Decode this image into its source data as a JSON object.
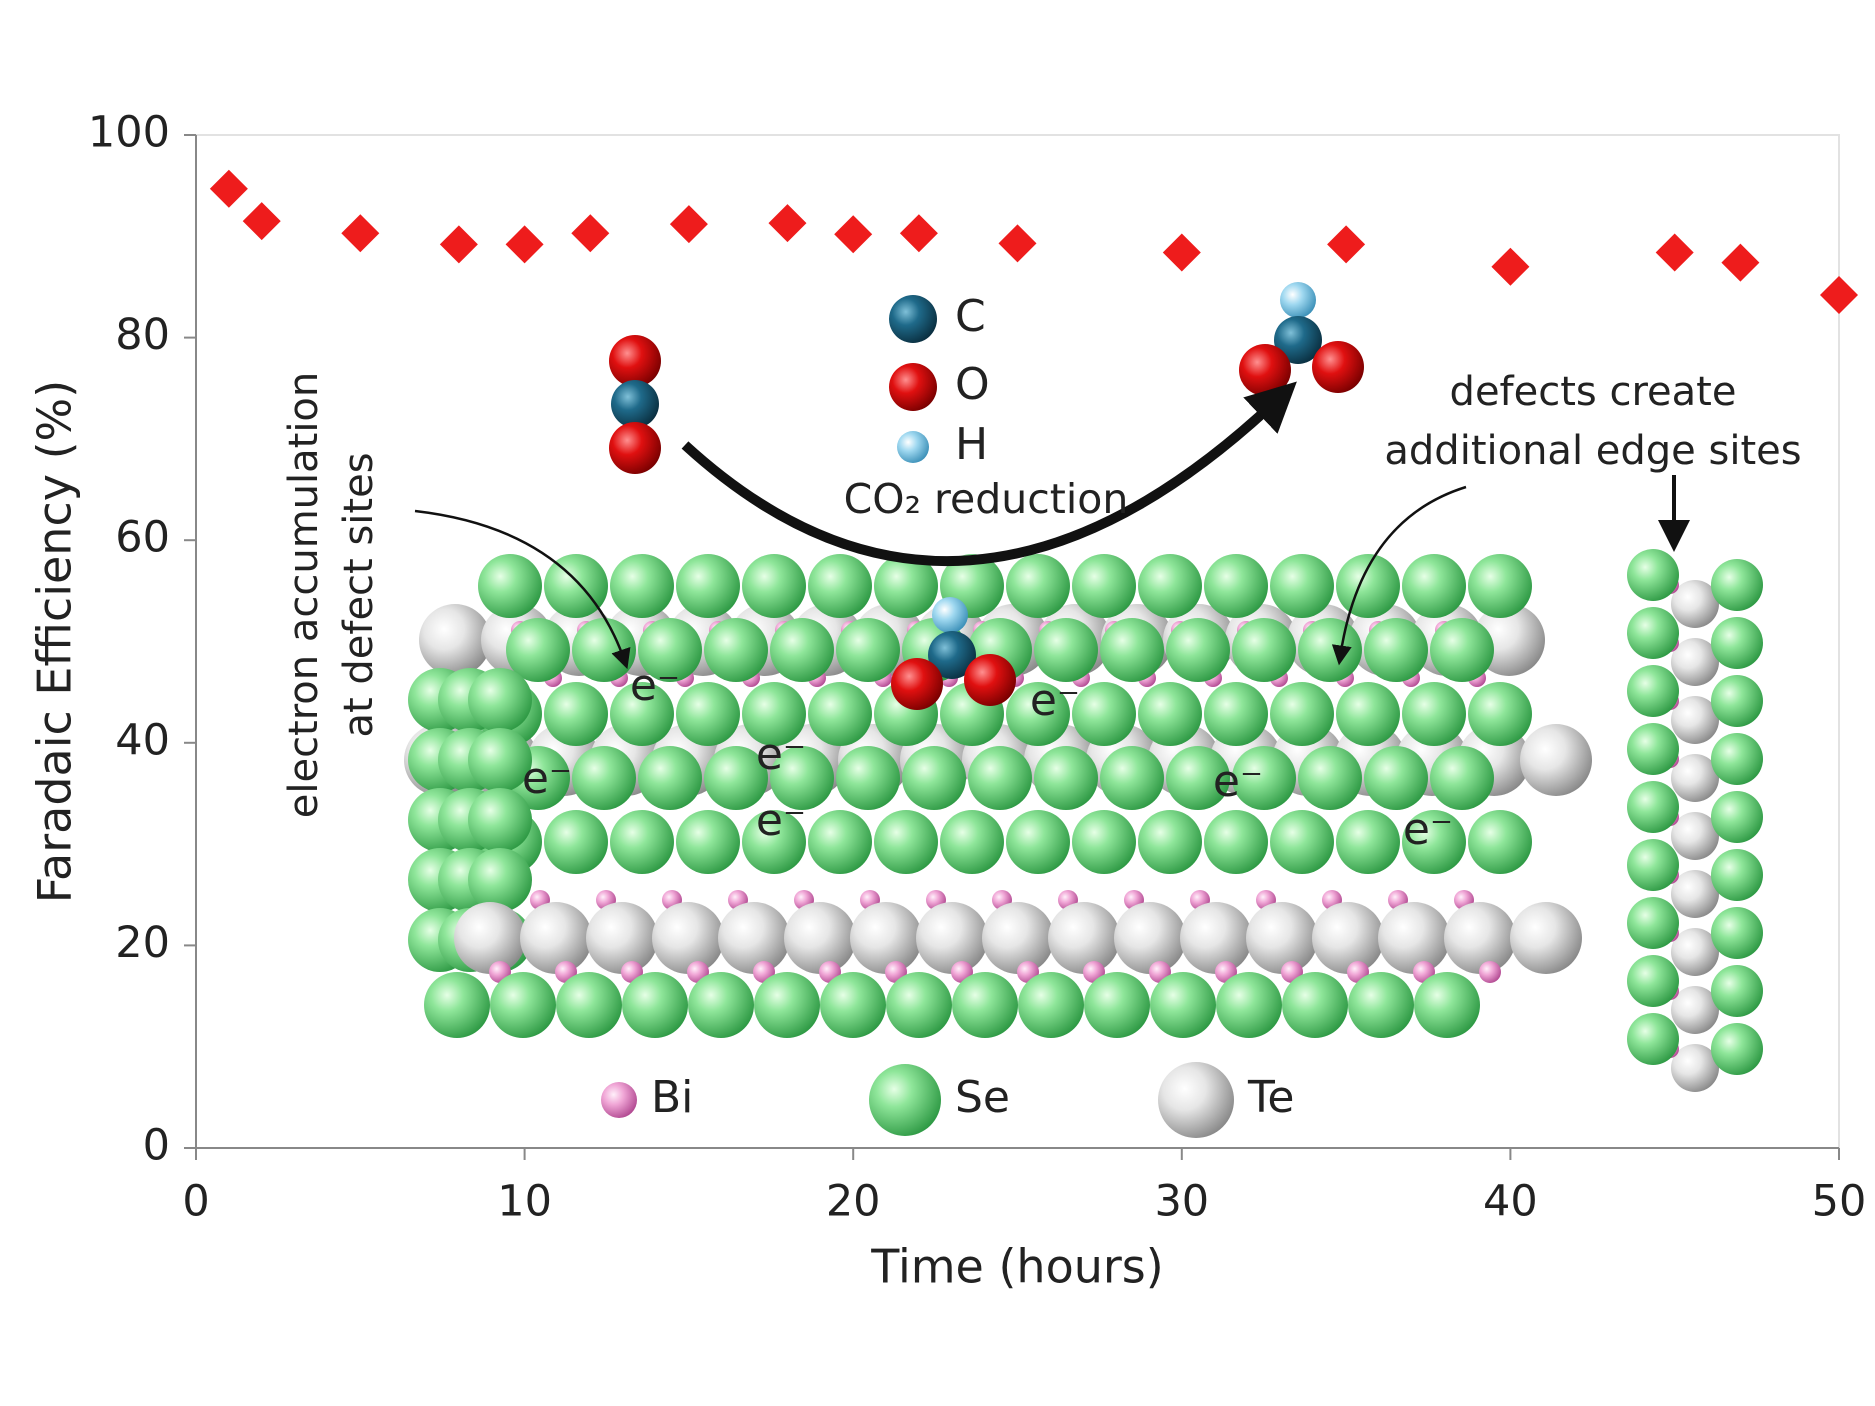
{
  "chart_data": {
    "type": "scatter",
    "xlabel": "Time (hours)",
    "ylabel": "Faradaic Efficiency (%)",
    "x": [
      1,
      2,
      5,
      8,
      10,
      12,
      15,
      18,
      20,
      22,
      25,
      30,
      35,
      40,
      45,
      47,
      50
    ],
    "values": [
      94.7,
      91.5,
      90.3,
      89.2,
      89.2,
      90.3,
      91.2,
      91.3,
      90.2,
      90.3,
      89.3,
      88.4,
      89.2,
      87.0,
      88.4,
      87.4,
      84.2
    ],
    "color": "#ee1c1c",
    "xlim": [
      0,
      50
    ],
    "xticks": [
      0,
      10,
      20,
      30,
      40,
      50
    ],
    "ylim": [
      0,
      100
    ],
    "yticks": [
      0,
      20,
      40,
      60,
      80,
      100
    ],
    "annotations": {
      "atom_legend": [
        "C",
        "O",
        "H"
      ],
      "reaction": "CO₂ reduction",
      "left_note": [
        "electron accumulation",
        "at defect sites"
      ],
      "right_note": [
        "defects create",
        "additional edge sites"
      ],
      "electrons": [
        "e⁻",
        "e⁻",
        "e⁻",
        "e⁻",
        "e⁻",
        "e⁻",
        "e⁻"
      ],
      "element_legend": [
        "Bi",
        "Se",
        "Te"
      ]
    }
  }
}
